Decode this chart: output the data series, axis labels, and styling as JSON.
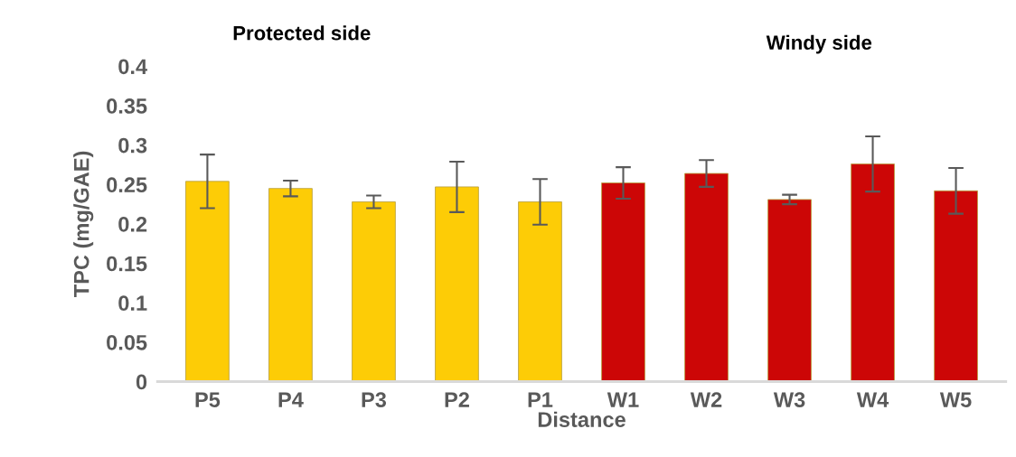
{
  "chart_data": {
    "type": "bar",
    "xlabel": "Distance",
    "ylabel": "TPC (mg/GAE)",
    "categories": [
      "P5",
      "P4",
      "P3",
      "P2",
      "P1",
      "W1",
      "W2",
      "W3",
      "W4",
      "W5"
    ],
    "values": [
      0.254,
      0.245,
      0.228,
      0.247,
      0.228,
      0.252,
      0.264,
      0.231,
      0.276,
      0.242
    ],
    "errors": [
      0.034,
      0.01,
      0.008,
      0.032,
      0.029,
      0.02,
      0.017,
      0.006,
      0.035,
      0.029
    ],
    "colors": [
      "#fdcc06",
      "#fdcc06",
      "#fdcc06",
      "#fdcc06",
      "#fdcc06",
      "#cc0606",
      "#cc0606",
      "#cc0606",
      "#cc0606",
      "#cc0606"
    ],
    "ylim": [
      0,
      0.4
    ],
    "yticks": [
      0,
      0.05,
      0.1,
      0.15,
      0.2,
      0.25,
      0.3,
      0.35,
      0.4
    ],
    "annotations": [
      "Protected side",
      "Windy side"
    ],
    "grid": false
  }
}
